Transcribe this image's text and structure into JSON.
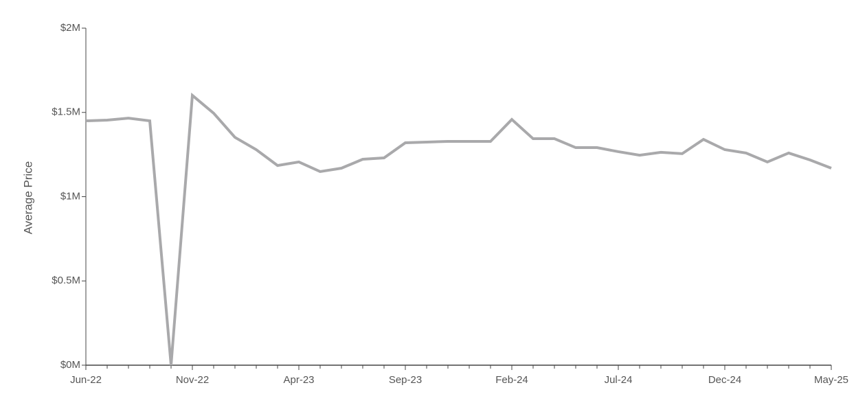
{
  "chart_data": {
    "type": "line",
    "y_label": "Average Price",
    "categories": [
      "Jun-22",
      null,
      null,
      null,
      null,
      "Nov-22",
      null,
      null,
      null,
      null,
      "Apr-23",
      null,
      null,
      null,
      null,
      "Sep-23",
      null,
      null,
      null,
      null,
      "Feb-24",
      null,
      null,
      null,
      null,
      "Jul-24",
      null,
      null,
      null,
      null,
      "Dec-24",
      null,
      null,
      null,
      null,
      "May-25"
    ],
    "series": [
      {
        "color": "#a9a9ab",
        "values": [
          1450000,
          1454000,
          1466000,
          1450000,
          0,
          1601000,
          1495000,
          1352000,
          1279000,
          1185000,
          1206000,
          1149000,
          1169000,
          1222000,
          1230000,
          1320000,
          1324000,
          1328000,
          1328000,
          1328000,
          1458000,
          1344000,
          1344000,
          1291000,
          1291000,
          1267000,
          1246000,
          1263000,
          1255000,
          1340000,
          1279000,
          1259000,
          1206000,
          1259000,
          1218000,
          1169000
        ]
      }
    ],
    "ylim": [
      0,
      2000000
    ],
    "yticks": [
      {
        "value": 0,
        "label": "$0M"
      },
      {
        "value": 500000,
        "label": "$0.5M"
      },
      {
        "value": 1000000,
        "label": "$1M"
      },
      {
        "value": 1500000,
        "label": "$1.5M"
      },
      {
        "value": 2000000,
        "label": "$2M"
      }
    ]
  }
}
